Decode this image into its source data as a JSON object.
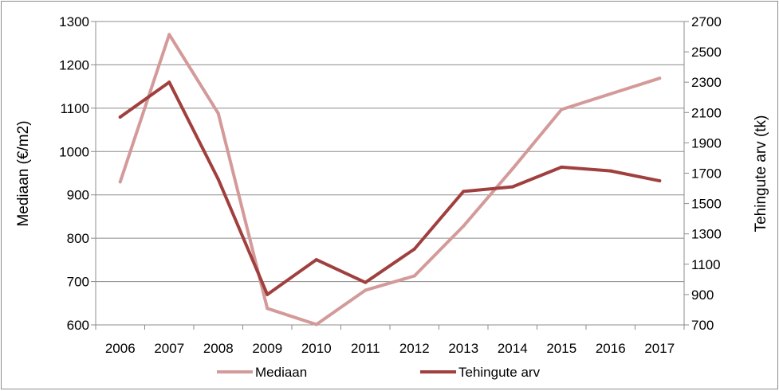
{
  "chart_data": {
    "type": "line",
    "categories": [
      "2006",
      "2007",
      "2008",
      "2009",
      "2010",
      "2011",
      "2012",
      "2013",
      "2014",
      "2015",
      "2016",
      "2017"
    ],
    "series": [
      {
        "name": "Mediaan",
        "axis": "left",
        "color": "#d49a9a",
        "values": [
          930,
          1270,
          1088,
          638,
          601,
          680,
          713,
          828,
          960,
          1097,
          1133,
          1169
        ]
      },
      {
        "name": "Tehingute arv",
        "axis": "right",
        "color": "#a0403e",
        "values": [
          2070,
          2300,
          1660,
          900,
          1130,
          980,
          1200,
          1580,
          1610,
          1740,
          1715,
          1650
        ]
      }
    ],
    "ylabel": "Mediaan (€/m2)",
    "ylim": [
      600,
      1300
    ],
    "yticks": [
      "600",
      "700",
      "800",
      "900",
      "1000",
      "1100",
      "1200",
      "1300"
    ],
    "y2label": "Tehingute arv (tk)",
    "y2lim": [
      700,
      2700
    ],
    "y2ticks": [
      "700",
      "900",
      "1100",
      "1300",
      "1500",
      "1700",
      "1900",
      "2100",
      "2300",
      "2500",
      "2700"
    ],
    "grid": true,
    "legend_position": "bottom"
  }
}
